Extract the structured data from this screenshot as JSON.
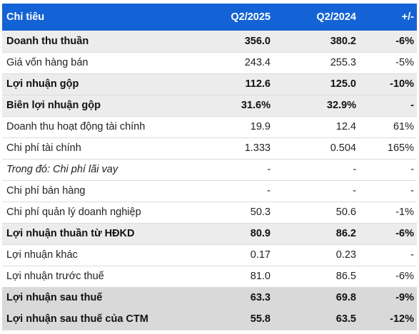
{
  "headers": [
    "Chỉ tiêu",
    "Q2/2025",
    "Q2/2024",
    "+/-"
  ],
  "rows": [
    {
      "label": "Doanh thu thuần",
      "q2_2025": "356.0",
      "q2_2024": "380.2",
      "change": "-6%",
      "style": "bold-shade"
    },
    {
      "label": "Giá vốn hàng bán",
      "q2_2025": "243.4",
      "q2_2024": "255.3",
      "change": "-5%",
      "style": "normal"
    },
    {
      "label": "Lợi nhuận gộp",
      "q2_2025": "112.6",
      "q2_2024": "125.0",
      "change": "-10%",
      "style": "bold-shade"
    },
    {
      "label": "Biên lợi nhuận gộp",
      "q2_2025": "31.6%",
      "q2_2024": "32.9%",
      "change": "-",
      "style": "bold-shade"
    },
    {
      "label": "Doanh thu hoạt động tài chính",
      "q2_2025": "19.9",
      "q2_2024": "12.4",
      "change": "61%",
      "style": "normal"
    },
    {
      "label": "Chi phí tài chính",
      "q2_2025": "1.333",
      "q2_2024": "0.504",
      "change": "165%",
      "style": "normal"
    },
    {
      "label": "Trong đó: Chi phí lãi vay",
      "q2_2025": "-",
      "q2_2024": "-",
      "change": "-",
      "style": "italic"
    },
    {
      "label": "Chi phí bán hàng",
      "q2_2025": "-",
      "q2_2024": "-",
      "change": "-",
      "style": "normal"
    },
    {
      "label": "Chi phí quản lý doanh nghiệp",
      "q2_2025": "50.3",
      "q2_2024": "50.6",
      "change": "-1%",
      "style": "normal"
    },
    {
      "label": "Lợi nhuận thuần từ HĐKD",
      "q2_2025": "80.9",
      "q2_2024": "86.2",
      "change": "-6%",
      "style": "bold-shade"
    },
    {
      "label": "Lợi nhuận khác",
      "q2_2025": "0.17",
      "q2_2024": "0.23",
      "change": "-",
      "style": "normal"
    },
    {
      "label": "Lợi nhuận trước thuế",
      "q2_2025": "81.0",
      "q2_2024": "86.5",
      "change": "-6%",
      "style": "normal"
    },
    {
      "label": "Lợi nhuận sau thuế",
      "q2_2025": "63.3",
      "q2_2024": "69.8",
      "change": "-9%",
      "style": "bold-shade2"
    },
    {
      "label": "Lợi nhuận sau thuế của CTM",
      "q2_2025": "55.8",
      "q2_2024": "63.5",
      "change": "-12%",
      "style": "bold-shade2"
    }
  ],
  "colors": {
    "header_bg": "#1463d6",
    "header_text": "#ffffff",
    "shade": "#ececec",
    "shade_dark": "#d9d9d9"
  }
}
